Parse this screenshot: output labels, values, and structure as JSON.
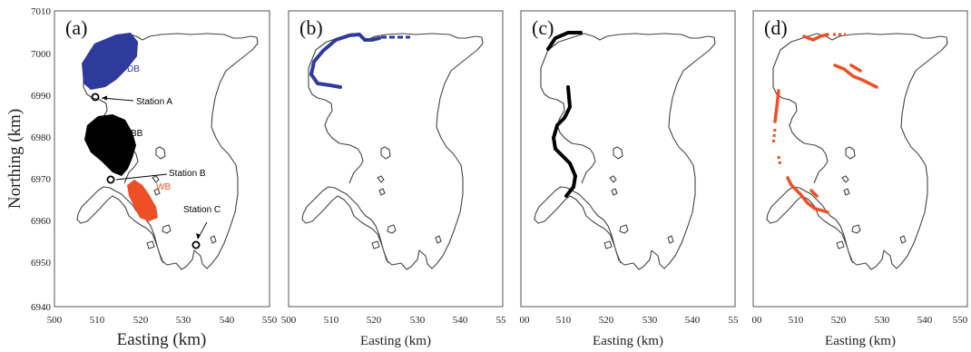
{
  "panels": [
    {
      "id": "a",
      "label": "(a)"
    },
    {
      "id": "b",
      "label": "(b)"
    },
    {
      "id": "c",
      "label": "(c)"
    },
    {
      "id": "d",
      "label": "(d)"
    }
  ],
  "axes": {
    "ylabel": "Northing (km)",
    "xlabel": "Easting (km)",
    "yticks": [
      "7010",
      "7000",
      "6990",
      "6980",
      "6970",
      "6960",
      "6950",
      "6940"
    ],
    "xticks_a": [
      "500",
      "510",
      "520",
      "530",
      "540",
      "550"
    ],
    "xticks_b": [
      "500",
      "510",
      "520",
      "530",
      "540",
      "55"
    ],
    "xticks_c": [
      "00",
      "510",
      "520",
      "530",
      "540",
      "55"
    ],
    "xticks_d": [
      "00",
      "510",
      "520",
      "530",
      "540",
      "550"
    ]
  },
  "annotations": {
    "db": "DB",
    "bb": "BB",
    "wb": "WB",
    "station_a": "Station A",
    "station_b": "Station B",
    "station_c": "Station C"
  },
  "colors": {
    "db": "#2e3a9c",
    "bb": "#000000",
    "wb": "#ee4f25"
  }
}
